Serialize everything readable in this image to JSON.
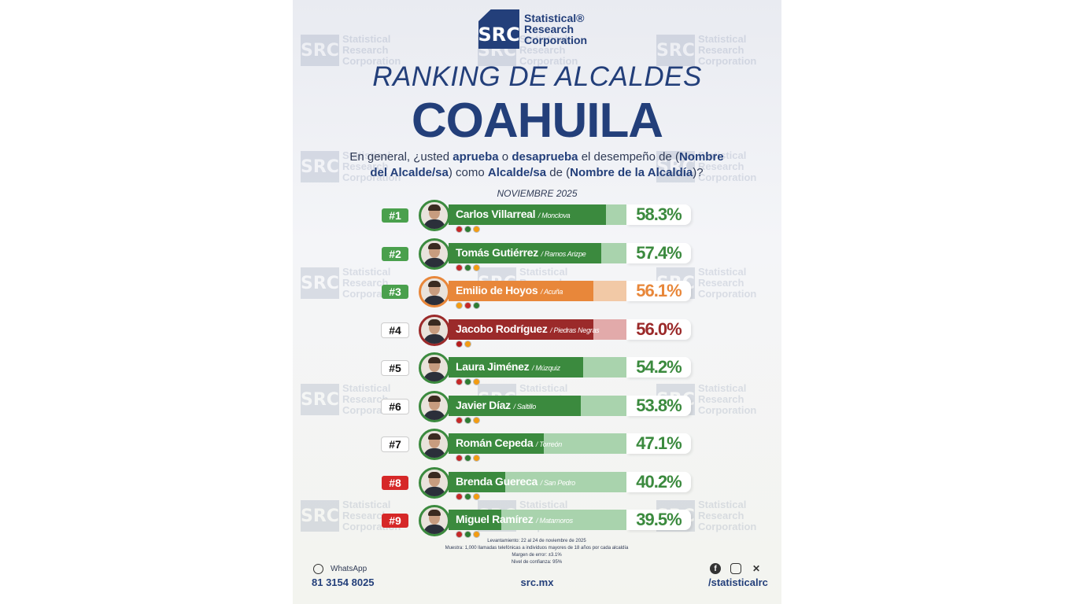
{
  "watermark": {
    "mark": "SRC",
    "text": "Statistical Research Corporation"
  },
  "logo": {
    "mark": "SRC",
    "line1": "Statistical®",
    "line2": "Research",
    "line3": "Corporation"
  },
  "title": {
    "line1": "RANKING DE ALCALDES",
    "line2": "COAHUILA"
  },
  "question": {
    "p1": "En general, ¿usted ",
    "b1": "aprueba",
    "p2": " o ",
    "b2": "desaprueba",
    "p3": " el desempeño de (",
    "b3": "Nombre del Alcalde/sa",
    "p4": ") como ",
    "b4": "Alcalde/sa",
    "p5": " de (",
    "b5": "Nombre de la Alcaldía",
    "p6": ")?"
  },
  "date": "NOVIEMBRE 2025",
  "colors": {
    "green": "#3b8a3e",
    "green_light": "#a9d3ad",
    "orange": "#e8873a",
    "orange_light": "#f2c9a6",
    "red": "#9b2a2a",
    "red_light": "#e2aaaa",
    "navy": "#233f7a"
  },
  "ranking": [
    {
      "rank": "#1",
      "name": "Carlos Villarreal",
      "city": "/ Monclova",
      "pct": "58.3%",
      "value": 58.3,
      "party": "green",
      "rank_style": "green",
      "parties": [
        "#c62828",
        "#2e7d32",
        "#f39c12"
      ]
    },
    {
      "rank": "#2",
      "name": "Tomás Gutiérrez",
      "city": "/ Ramos Arizpe",
      "pct": "57.4%",
      "value": 57.4,
      "party": "green",
      "rank_style": "green",
      "parties": [
        "#c62828",
        "#2e7d32",
        "#f39c12"
      ]
    },
    {
      "rank": "#3",
      "name": "Emilio de Hoyos",
      "city": "/ Acuña",
      "pct": "56.1%",
      "value": 56.1,
      "party": "orange",
      "rank_style": "green",
      "parties": [
        "#f39c12",
        "#c62828",
        "#2e7d32"
      ]
    },
    {
      "rank": "#4",
      "name": "Jacobo Rodríguez",
      "city": "/ Piedras Negras",
      "pct": "56.0%",
      "value": 56.0,
      "party": "red",
      "rank_style": "white",
      "parties": [
        "#b71c1c",
        "#f39c12"
      ]
    },
    {
      "rank": "#5",
      "name": "Laura Jiménez",
      "city": "/ Múzquiz",
      "pct": "54.2%",
      "value": 54.2,
      "party": "green",
      "rank_style": "white",
      "parties": [
        "#c62828",
        "#2e7d32",
        "#f39c12"
      ]
    },
    {
      "rank": "#6",
      "name": "Javier Díaz",
      "city": "/ Saltillo",
      "pct": "53.8%",
      "value": 53.8,
      "party": "green",
      "rank_style": "white",
      "parties": [
        "#c62828",
        "#2e7d32",
        "#f39c12"
      ]
    },
    {
      "rank": "#7",
      "name": "Román Cepeda",
      "city": "/ Torreón",
      "pct": "47.1%",
      "value": 47.1,
      "party": "green",
      "rank_style": "white",
      "parties": [
        "#c62828",
        "#2e7d32",
        "#f39c12"
      ]
    },
    {
      "rank": "#8",
      "name": "Brenda Guereca",
      "city": "/ San Pedro",
      "pct": "40.2%",
      "value": 40.2,
      "party": "green",
      "rank_style": "red",
      "parties": [
        "#c62828",
        "#2e7d32",
        "#f39c12"
      ]
    },
    {
      "rank": "#9",
      "name": "Miguel Ramírez",
      "city": "/ Matamoros",
      "pct": "39.5%",
      "value": 39.5,
      "party": "green",
      "rank_style": "red",
      "parties": [
        "#c62828",
        "#2e7d32",
        "#f39c12"
      ]
    }
  ],
  "methodology": {
    "l1": "Levantamiento: 22 al 24 de noviembre de 2025",
    "l2": "Muestra: 1,000 llamadas telefónicas a individuos mayores de 18 años por cada alcaldía",
    "l3": "Margen de error: ±3.1%",
    "l4": "Nivel de confianza: 95%"
  },
  "footer": {
    "whatsapp_label": "WhatsApp",
    "phone": "81 3154 8025",
    "website": "src.mx",
    "handle": "/statisticalrc",
    "icons": [
      "whatsapp-icon",
      "facebook-icon",
      "instagram-icon",
      "x-icon"
    ]
  }
}
